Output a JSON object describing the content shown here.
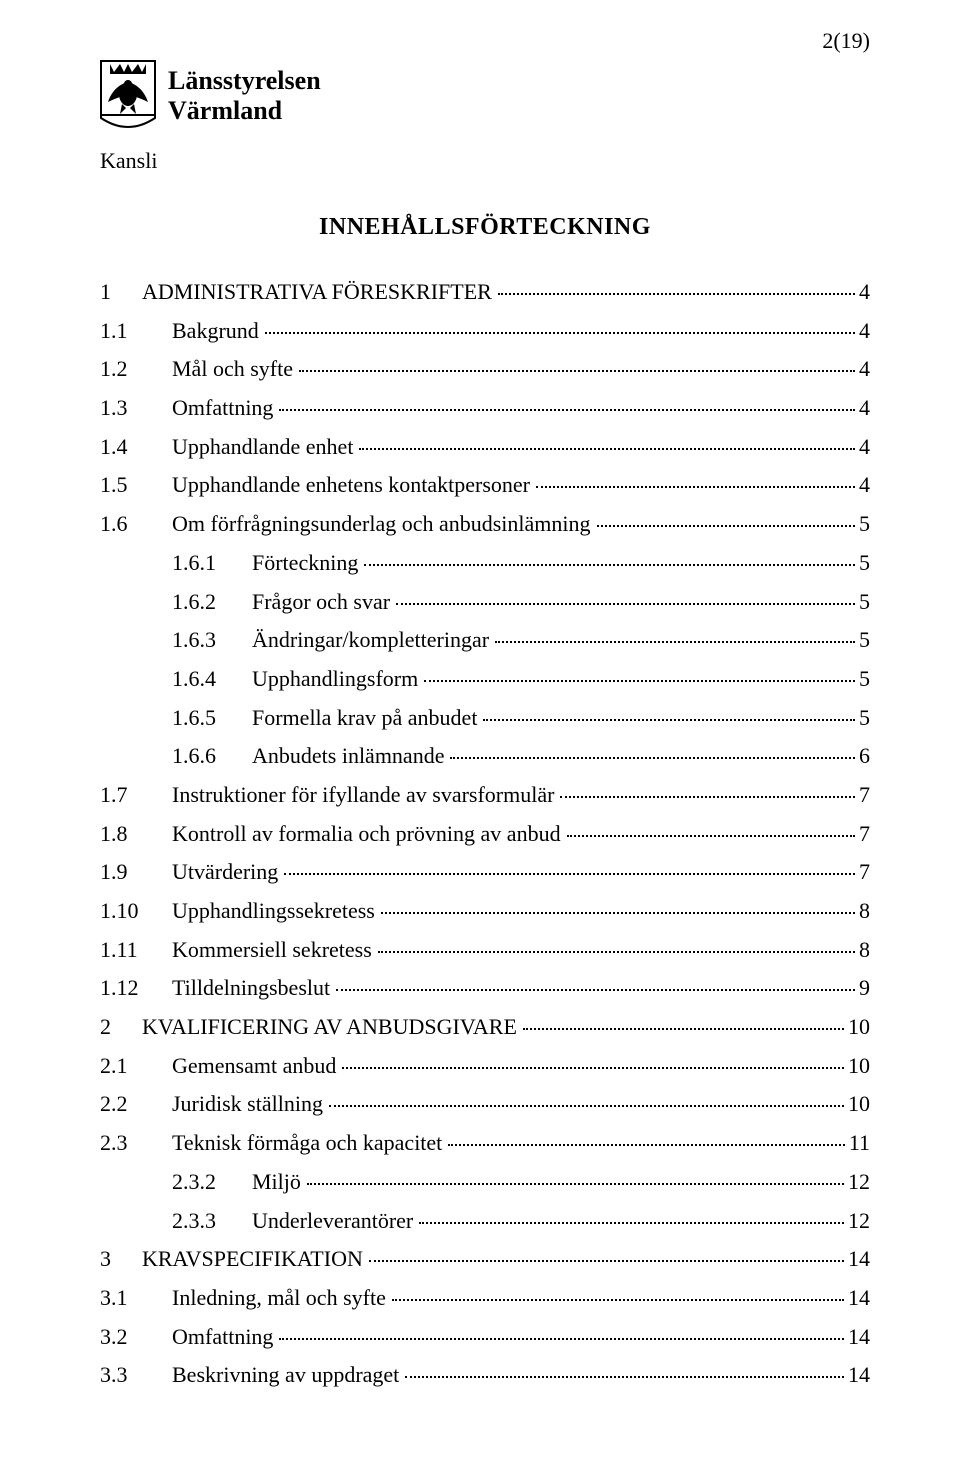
{
  "page_number_display": "2(19)",
  "org": {
    "line1": "Länsstyrelsen",
    "line2": "Värmland"
  },
  "kansli_label": "Kansli",
  "title": "INNEHÅLLSFÖRTECKNING",
  "toc": [
    {
      "num": "1",
      "label": "ADMINISTRATIVA FÖRESKRIFTER",
      "page": "4",
      "level": 0
    },
    {
      "num": "1.1",
      "label": "Bakgrund",
      "page": "4",
      "level": 1
    },
    {
      "num": "1.2",
      "label": "Mål och syfte",
      "page": "4",
      "level": 1
    },
    {
      "num": "1.3",
      "label": "Omfattning",
      "page": "4",
      "level": 1
    },
    {
      "num": "1.4",
      "label": "Upphandlande enhet",
      "page": "4",
      "level": 1
    },
    {
      "num": "1.5",
      "label": "Upphandlande enhetens kontaktpersoner",
      "page": "4",
      "level": 1
    },
    {
      "num": "1.6",
      "label": "Om förfrågningsunderlag och anbudsinlämning",
      "page": "5",
      "level": 1
    },
    {
      "num": "1.6.1",
      "label": "Förteckning",
      "page": "5",
      "level": 2
    },
    {
      "num": "1.6.2",
      "label": "Frågor och svar",
      "page": "5",
      "level": 2
    },
    {
      "num": "1.6.3",
      "label": "Ändringar/kompletteringar",
      "page": "5",
      "level": 2
    },
    {
      "num": "1.6.4",
      "label": "Upphandlingsform",
      "page": "5",
      "level": 2
    },
    {
      "num": "1.6.5",
      "label": "Formella krav på anbudet",
      "page": "5",
      "level": 2
    },
    {
      "num": "1.6.6",
      "label": "Anbudets inlämnande",
      "page": "6",
      "level": 2
    },
    {
      "num": "1.7",
      "label": "Instruktioner för ifyllande av svarsformulär",
      "page": "7",
      "level": 1
    },
    {
      "num": "1.8",
      "label": "Kontroll av formalia och prövning av anbud",
      "page": "7",
      "level": 1
    },
    {
      "num": "1.9",
      "label": "Utvärdering",
      "page": "7",
      "level": 1
    },
    {
      "num": "1.10",
      "label": "Upphandlingssekretess",
      "page": "8",
      "level": 1
    },
    {
      "num": "1.11",
      "label": "Kommersiell sekretess",
      "page": "8",
      "level": 1
    },
    {
      "num": "1.12",
      "label": "Tilldelningsbeslut",
      "page": "9",
      "level": 1
    },
    {
      "num": "2",
      "label": "KVALIFICERING AV ANBUDSGIVARE",
      "page": "10",
      "level": 0
    },
    {
      "num": "2.1",
      "label": "Gemensamt anbud",
      "page": "10",
      "level": 1
    },
    {
      "num": "2.2",
      "label": "Juridisk ställning",
      "page": "10",
      "level": 1
    },
    {
      "num": "2.3",
      "label": "Teknisk förmåga och kapacitet",
      "page": "11",
      "level": 1
    },
    {
      "num": "2.3.2",
      "label": "Miljö",
      "page": "12",
      "level": 2
    },
    {
      "num": "2.3.3",
      "label": "Underleverantörer",
      "page": "12",
      "level": 2
    },
    {
      "num": "3",
      "label": "KRAVSPECIFIKATION",
      "page": "14",
      "level": 0
    },
    {
      "num": "3.1",
      "label": "Inledning, mål och syfte",
      "page": "14",
      "level": 1
    },
    {
      "num": "3.2",
      "label": "Omfattning",
      "page": "14",
      "level": 1
    },
    {
      "num": "3.3",
      "label": "Beskrivning av uppdraget",
      "page": "14",
      "level": 1
    }
  ],
  "colors": {
    "text": "#000000",
    "background": "#ffffff",
    "leader": "#000000"
  },
  "typography": {
    "base_family": "Times New Roman",
    "body_size_pt": 16,
    "title_size_pt": 18
  }
}
